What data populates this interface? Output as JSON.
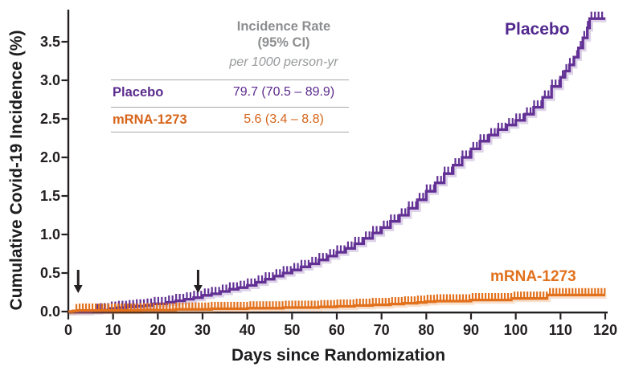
{
  "chart_data": {
    "type": "line",
    "subtype": "cumulative-incidence-step-curves-with-censor-ticks",
    "title": "",
    "xlabel": "Days since Randomization",
    "ylabel": "Cumulative Covid-19 Incidence (%)",
    "xlim": [
      0,
      120
    ],
    "ylim": [
      0,
      3.9
    ],
    "x_ticks": [
      0,
      10,
      20,
      30,
      40,
      50,
      60,
      70,
      80,
      90,
      100,
      110,
      120
    ],
    "y_ticks": [
      0.0,
      0.5,
      1.0,
      1.5,
      2.0,
      2.5,
      3.0,
      3.5
    ],
    "grid": false,
    "legend_position": "curve-end-labels",
    "series": [
      {
        "name": "Placebo",
        "color": "#633195",
        "censor_tick_start_day": 6.5,
        "censor_tick_step_days": 0.8,
        "points": [
          [
            0,
            0
          ],
          [
            5,
            0.01
          ],
          [
            7,
            0.02
          ],
          [
            9,
            0.04
          ],
          [
            11,
            0.05
          ],
          [
            13,
            0.06
          ],
          [
            15,
            0.07
          ],
          [
            17,
            0.08
          ],
          [
            19,
            0.1
          ],
          [
            22,
            0.12
          ],
          [
            24,
            0.14
          ],
          [
            26,
            0.16
          ],
          [
            28,
            0.18
          ],
          [
            30,
            0.21
          ],
          [
            32,
            0.23
          ],
          [
            34,
            0.26
          ],
          [
            36,
            0.29
          ],
          [
            38,
            0.31
          ],
          [
            40,
            0.34
          ],
          [
            42,
            0.38
          ],
          [
            44,
            0.42
          ],
          [
            46,
            0.46
          ],
          [
            48,
            0.5
          ],
          [
            50,
            0.54
          ],
          [
            52,
            0.58
          ],
          [
            54,
            0.62
          ],
          [
            56,
            0.67
          ],
          [
            58,
            0.72
          ],
          [
            60,
            0.77
          ],
          [
            62,
            0.82
          ],
          [
            64,
            0.88
          ],
          [
            66,
            0.95
          ],
          [
            68,
            1.02
          ],
          [
            70,
            1.09
          ],
          [
            72,
            1.17
          ],
          [
            74,
            1.25
          ],
          [
            76,
            1.34
          ],
          [
            78,
            1.45
          ],
          [
            80,
            1.56
          ],
          [
            82,
            1.67
          ],
          [
            84,
            1.79
          ],
          [
            86,
            1.9
          ],
          [
            88,
            2.0
          ],
          [
            90,
            2.11
          ],
          [
            92,
            2.21
          ],
          [
            94,
            2.29
          ],
          [
            96,
            2.36
          ],
          [
            98,
            2.42
          ],
          [
            100,
            2.48
          ],
          [
            102,
            2.56
          ],
          [
            104,
            2.65
          ],
          [
            106,
            2.78
          ],
          [
            108,
            2.92
          ],
          [
            110,
            3.04
          ],
          [
            111,
            3.12
          ],
          [
            112,
            3.2
          ],
          [
            113,
            3.3
          ],
          [
            114,
            3.42
          ],
          [
            115,
            3.55
          ],
          [
            116,
            3.68
          ],
          [
            116.5,
            3.8
          ],
          [
            120,
            3.8
          ]
        ]
      },
      {
        "name": "mRNA-1273",
        "color": "#e2711d",
        "censor_tick_start_day": 1.8,
        "censor_tick_step_days": 0.72,
        "points": [
          [
            0,
            0
          ],
          [
            1,
            0.008
          ],
          [
            2,
            0.015
          ],
          [
            16,
            0.02
          ],
          [
            24,
            0.028
          ],
          [
            32,
            0.036
          ],
          [
            40,
            0.044
          ],
          [
            48,
            0.052
          ],
          [
            56,
            0.06
          ],
          [
            60,
            0.068
          ],
          [
            64,
            0.078
          ],
          [
            68,
            0.088
          ],
          [
            72,
            0.098
          ],
          [
            75,
            0.108
          ],
          [
            78,
            0.118
          ],
          [
            80,
            0.128
          ],
          [
            82,
            0.135
          ],
          [
            90,
            0.15
          ],
          [
            99,
            0.17
          ],
          [
            107,
            0.215
          ],
          [
            120,
            0.215
          ]
        ]
      }
    ],
    "annotations": {
      "down_arrow_days": [
        2.2,
        29
      ],
      "arrow_color": "#231f20"
    },
    "legend_table": {
      "header_line1": "Incidence Rate",
      "header_line2": "(95% CI)",
      "header_line3": "per 1000 person-yr",
      "rows": [
        {
          "name": "Placebo",
          "value": "79.7 (70.5 – 89.9)",
          "color": "#5b2b8e"
        },
        {
          "name": "mRNA-1273",
          "value": "5.6 (3.4 – 8.8)",
          "color": "#d6651a"
        }
      ]
    },
    "colors": {
      "axis": "#231f20",
      "placebo": "#633195",
      "mrna": "#e2711d",
      "table_header_gray": "#8d8e90"
    }
  }
}
